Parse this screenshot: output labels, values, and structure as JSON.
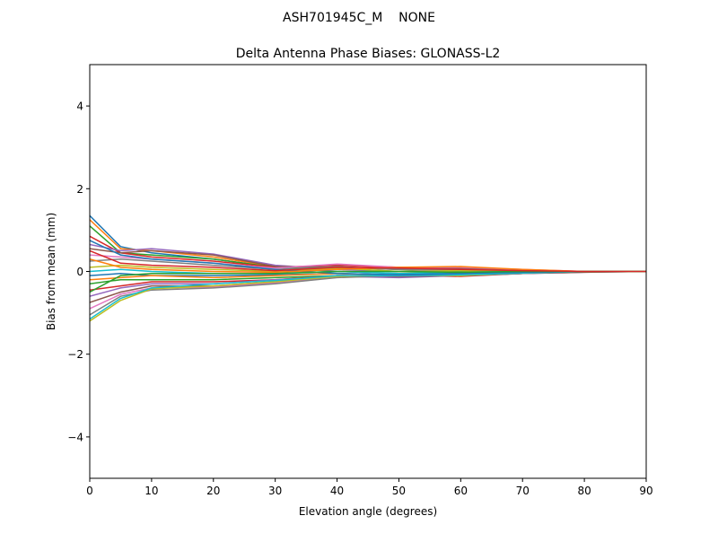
{
  "chart_data": {
    "type": "line",
    "suptitle": "ASH701945C_M    NONE",
    "title": "Delta Antenna Phase Biases: GLONASS-L2",
    "xlabel": "Elevation angle (degrees)",
    "ylabel": "Bias from mean (mm)",
    "xlim": [
      0,
      90
    ],
    "ylim": [
      -5,
      5
    ],
    "xticks": [
      0,
      10,
      20,
      30,
      40,
      50,
      60,
      70,
      80,
      90
    ],
    "yticks": [
      -4,
      -2,
      0,
      2,
      4
    ],
    "ytick_labels": [
      "−4",
      "−2",
      "0",
      "2",
      "4"
    ],
    "grid": false,
    "colors": [
      "#1f77b4",
      "#ff7f0e",
      "#2ca02c",
      "#d62728",
      "#9467bd",
      "#8c564b",
      "#e377c2",
      "#7f7f7f",
      "#bcbd22",
      "#17becf"
    ],
    "x": [
      0,
      5,
      10,
      20,
      30,
      40,
      50,
      60,
      70,
      80,
      90
    ],
    "series": [
      {
        "values": [
          1.35,
          0.6,
          0.45,
          0.3,
          0.1,
          0.0,
          -0.05,
          -0.05,
          0.0,
          0.0,
          0
        ]
      },
      {
        "values": [
          1.25,
          0.55,
          0.5,
          0.35,
          0.12,
          0.05,
          0.0,
          -0.05,
          -0.02,
          0,
          0
        ]
      },
      {
        "values": [
          1.1,
          0.45,
          0.4,
          0.3,
          0.1,
          0.1,
          0.05,
          0,
          0,
          0,
          0
        ]
      },
      {
        "values": [
          0.85,
          0.45,
          0.35,
          0.25,
          0.1,
          0.15,
          0.1,
          0.05,
          0.02,
          0,
          0
        ]
      },
      {
        "values": [
          0.65,
          0.5,
          0.55,
          0.42,
          0.15,
          0.05,
          0,
          0.05,
          0.02,
          0,
          0
        ]
      },
      {
        "values": [
          0.55,
          0.45,
          0.5,
          0.4,
          0.12,
          0.1,
          0.05,
          0.08,
          0.03,
          0,
          0
        ]
      },
      {
        "values": [
          0.4,
          0.35,
          0.3,
          0.2,
          0.08,
          0.18,
          0.1,
          0.1,
          0.05,
          0,
          0
        ]
      },
      {
        "values": [
          0.25,
          0.3,
          0.25,
          0.15,
          0.05,
          0.12,
          0.05,
          0.05,
          0.02,
          0,
          0
        ]
      },
      {
        "values": [
          0.1,
          0.15,
          0.1,
          0.05,
          0.0,
          0.08,
          0.0,
          0.02,
          0,
          0,
          0
        ]
      },
      {
        "values": [
          0.0,
          0.05,
          0.0,
          -0.05,
          -0.05,
          0.0,
          -0.05,
          -0.02,
          0,
          0,
          0
        ]
      },
      {
        "values": [
          -0.1,
          -0.05,
          -0.1,
          -0.1,
          -0.08,
          -0.05,
          -0.08,
          -0.05,
          -0.02,
          0,
          0
        ]
      },
      {
        "values": [
          -0.2,
          -0.15,
          -0.1,
          -0.15,
          -0.1,
          -0.05,
          -0.1,
          -0.08,
          -0.03,
          0,
          0
        ]
      },
      {
        "values": [
          -0.3,
          -0.2,
          -0.2,
          -0.2,
          -0.15,
          -0.1,
          -0.12,
          -0.1,
          -0.05,
          0,
          0
        ]
      },
      {
        "values": [
          -0.45,
          -0.35,
          -0.25,
          -0.25,
          -0.2,
          -0.1,
          -0.1,
          -0.12,
          -0.05,
          0,
          0
        ]
      },
      {
        "values": [
          -0.6,
          -0.4,
          -0.3,
          -0.3,
          -0.2,
          -0.12,
          -0.15,
          -0.1,
          -0.05,
          -0.02,
          0
        ]
      },
      {
        "values": [
          -0.75,
          -0.5,
          -0.35,
          -0.35,
          -0.25,
          -0.1,
          -0.12,
          -0.1,
          -0.05,
          -0.02,
          0
        ]
      },
      {
        "values": [
          -0.9,
          -0.55,
          -0.4,
          -0.38,
          -0.28,
          -0.12,
          -0.1,
          -0.08,
          -0.05,
          0,
          0
        ]
      },
      {
        "values": [
          -1.05,
          -0.6,
          -0.45,
          -0.4,
          -0.3,
          -0.15,
          -0.1,
          -0.1,
          -0.05,
          0,
          0
        ]
      },
      {
        "values": [
          -1.2,
          -0.7,
          -0.42,
          -0.35,
          -0.25,
          -0.12,
          -0.08,
          -0.1,
          -0.03,
          0,
          0
        ]
      },
      {
        "values": [
          -1.15,
          -0.65,
          -0.4,
          -0.3,
          -0.22,
          -0.1,
          -0.1,
          -0.08,
          -0.04,
          0,
          0
        ]
      },
      {
        "values": [
          0.75,
          0.4,
          0.3,
          0.2,
          0.05,
          -0.05,
          -0.08,
          -0.05,
          -0.02,
          0,
          0
        ]
      },
      {
        "values": [
          0.3,
          0.1,
          0.05,
          0.0,
          -0.02,
          0.05,
          0.1,
          0.12,
          0.05,
          0,
          0
        ]
      },
      {
        "values": [
          -0.5,
          -0.1,
          -0.05,
          -0.05,
          -0.05,
          0.0,
          0.0,
          -0.02,
          0,
          0,
          0
        ]
      },
      {
        "values": [
          0.5,
          0.2,
          0.15,
          0.1,
          0.02,
          0.1,
          0.08,
          0.05,
          0.02,
          0,
          0
        ]
      }
    ]
  }
}
